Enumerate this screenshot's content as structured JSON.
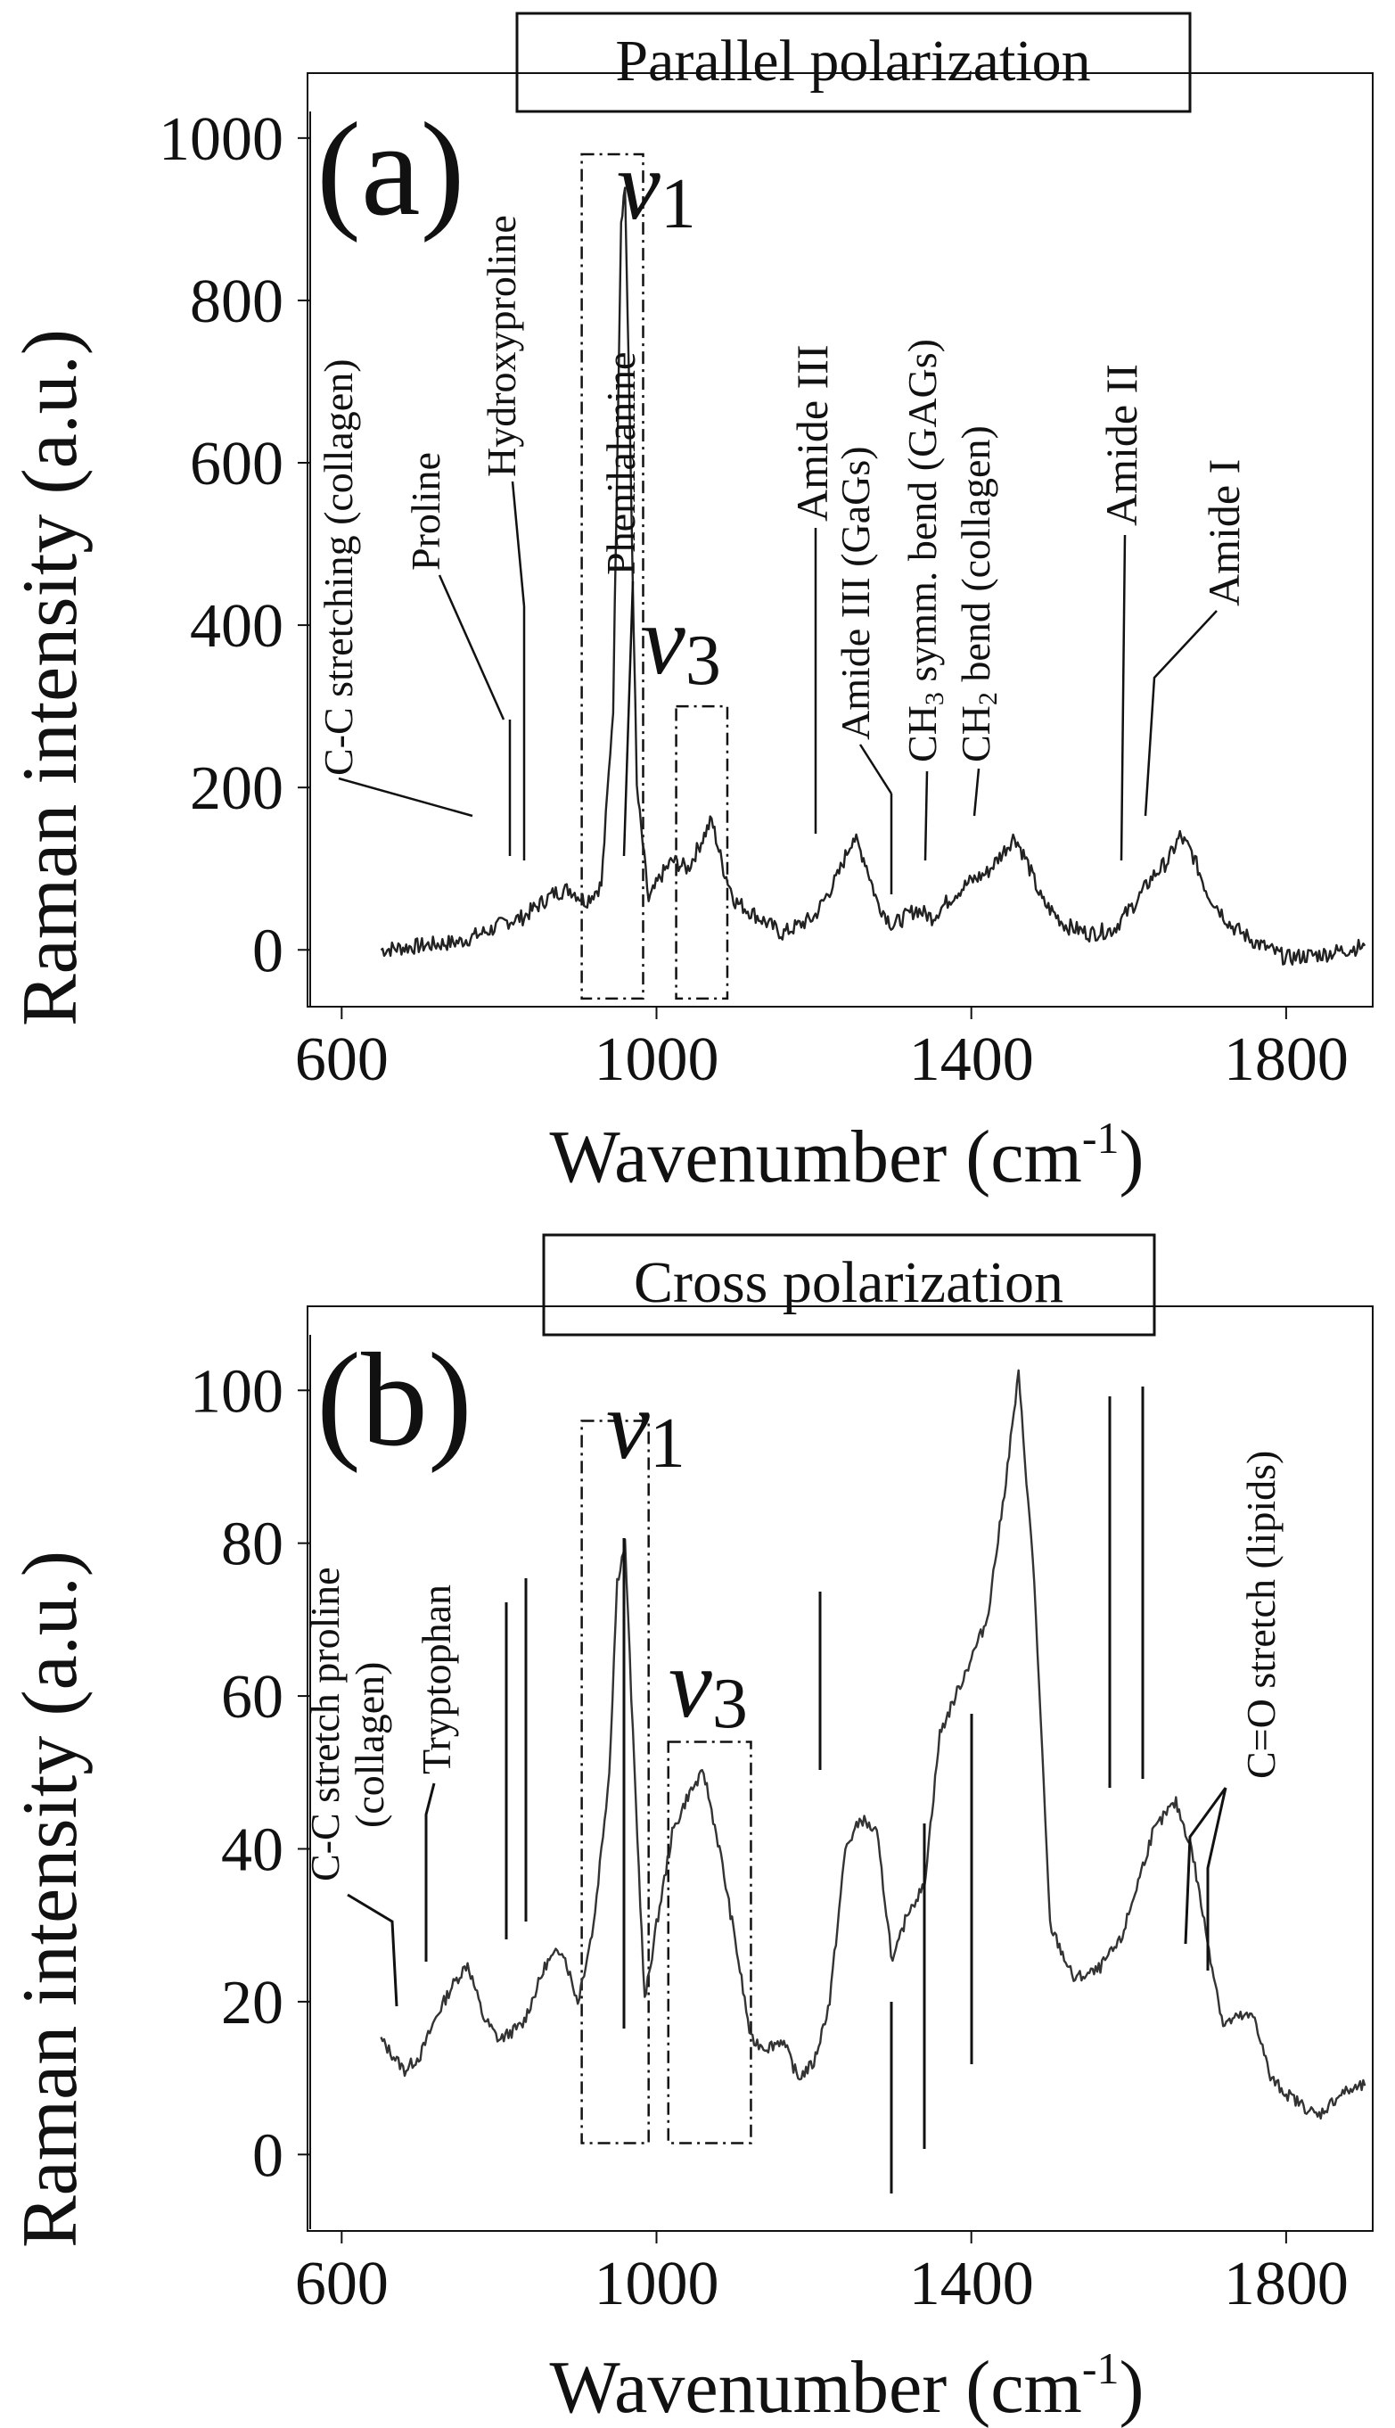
{
  "chart_data": [
    {
      "type": "line",
      "panel_label": "(a)",
      "title": "Parallel polarization",
      "xlabel": "Wavenumber (cm",
      "xlabel_sup": "-1",
      "xlabel_end": ")",
      "ylabel": "Raman intensity (a.u.)",
      "xlim": [
        560,
        1910
      ],
      "ylim": [
        -70,
        1080
      ],
      "x_ticks": [
        600,
        1000,
        1400,
        1800
      ],
      "y_ticks": [
        0,
        200,
        400,
        600,
        800,
        1000
      ],
      "line_color": "#222222",
      "series": [
        {
          "name": "Parallel polarization spectrum",
          "x": [
            650,
            700,
            750,
            790,
            810,
            830,
            850,
            870,
            890,
            910,
            930,
            945,
            955,
            960,
            965,
            975,
            990,
            1005,
            1020,
            1040,
            1055,
            1070,
            1085,
            1100,
            1130,
            1160,
            1200,
            1230,
            1250,
            1265,
            1280,
            1300,
            1330,
            1350,
            1380,
            1400,
            1420,
            1440,
            1455,
            1470,
            1490,
            1520,
            1550,
            1580,
            1610,
            1630,
            1650,
            1665,
            1680,
            1700,
            1730,
            1760,
            1800,
            1850,
            1900
          ],
          "y": [
            0,
            5,
            10,
            25,
            35,
            40,
            55,
            70,
            75,
            60,
            80,
            300,
            900,
            940,
            700,
            200,
            60,
            90,
            110,
            100,
            130,
            160,
            100,
            60,
            40,
            20,
            40,
            90,
            140,
            110,
            60,
            30,
            50,
            40,
            70,
            85,
            95,
            120,
            140,
            110,
            60,
            30,
            20,
            25,
            60,
            90,
            110,
            140,
            120,
            70,
            30,
            10,
            -10,
            -5,
            5
          ]
        }
      ],
      "boxes": [
        {
          "name": "v1",
          "x_from": 905,
          "x_to": 983,
          "y_from": -60,
          "y_to": 980
        },
        {
          "name": "v3",
          "x_from": 1025,
          "x_to": 1090,
          "y_from": -60,
          "y_to": 300
        }
      ],
      "box_labels": {
        "v1": "v",
        "v1_sub": "1",
        "v3": "v",
        "v3_sub": "3"
      },
      "annotations": [
        "C-C stretching (collagen)",
        "Proline",
        "Hydroxyproline",
        "Phenilalanine",
        "Amide III",
        "Amide III (GaGs)",
        "CH",
        "3",
        " symm. bend (GAGs)",
        "CH",
        "2",
        " bend (collagen)",
        "Amide II",
        "Amide I"
      ]
    },
    {
      "type": "line",
      "panel_label": "(b)",
      "title": "Cross polarization",
      "xlabel": "Wavenumber (cm",
      "xlabel_sup": "-1",
      "xlabel_end": ")",
      "ylabel": "Raman intensity (a.u.)",
      "xlim": [
        560,
        1910
      ],
      "ylim": [
        -10,
        111
      ],
      "x_ticks": [
        600,
        1000,
        1400,
        1800
      ],
      "y_ticks": [
        0,
        20,
        40,
        60,
        80,
        100
      ],
      "line_color": "#333333",
      "series": [
        {
          "name": "Cross polarization spectrum",
          "x": [
            650,
            680,
            700,
            720,
            740,
            760,
            780,
            800,
            830,
            860,
            880,
            900,
            920,
            940,
            950,
            960,
            970,
            985,
            1000,
            1020,
            1040,
            1060,
            1080,
            1100,
            1120,
            1140,
            1160,
            1180,
            1200,
            1220,
            1240,
            1260,
            1280,
            1300,
            1320,
            1340,
            1360,
            1380,
            1400,
            1420,
            1440,
            1460,
            1480,
            1500,
            1530,
            1560,
            1590,
            1610,
            1630,
            1650,
            1660,
            1680,
            1700,
            1720,
            1740,
            1760,
            1780,
            1800,
            1840,
            1870,
            1900
          ],
          "y": [
            15,
            11,
            13,
            18,
            22,
            25,
            18,
            15,
            17,
            25,
            27,
            20,
            30,
            50,
            75,
            80,
            55,
            20,
            30,
            42,
            47,
            50,
            40,
            28,
            15,
            14,
            15,
            10,
            12,
            20,
            40,
            44,
            42,
            25,
            32,
            35,
            55,
            60,
            65,
            70,
            85,
            102,
            75,
            30,
            23,
            24,
            28,
            35,
            42,
            45,
            46,
            40,
            28,
            17,
            18,
            18,
            10,
            8,
            5,
            8,
            9
          ]
        }
      ],
      "boxes": [
        {
          "name": "v1",
          "x_from": 905,
          "x_to": 990,
          "y_from": 1.5,
          "y_to": 96
        },
        {
          "name": "v3",
          "x_from": 1015,
          "x_to": 1120,
          "y_from": 1.5,
          "y_to": 54
        }
      ],
      "box_labels": {
        "v1": "v",
        "v1_sub": "1",
        "v3": "v",
        "v3_sub": "3"
      },
      "annotations": [
        "C-C stretch proline",
        "(collagen)",
        "Tryptophan",
        "C=O stretch (lipids)"
      ]
    }
  ]
}
